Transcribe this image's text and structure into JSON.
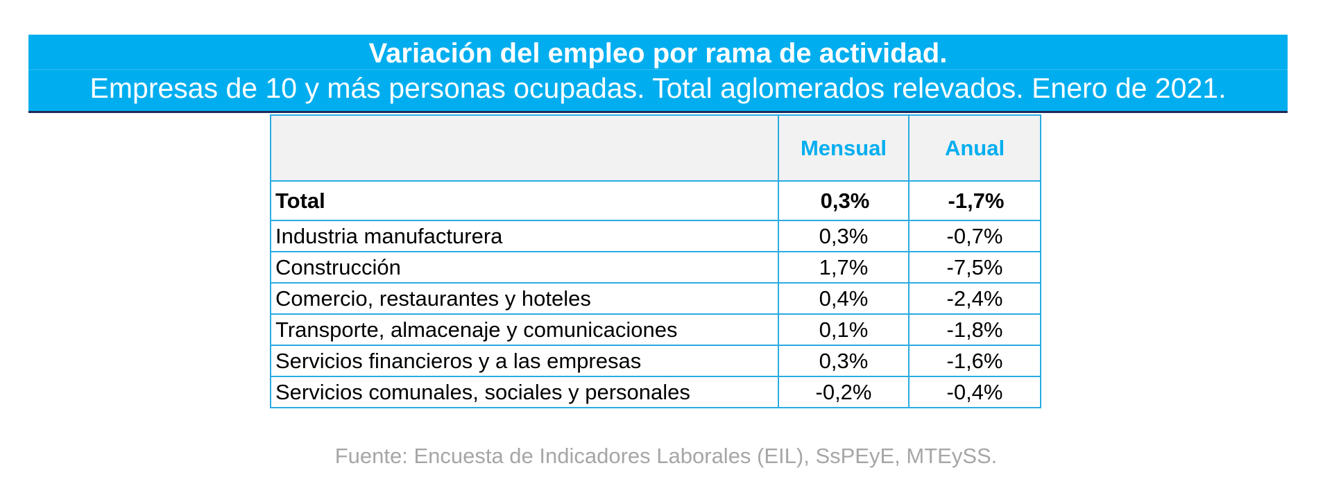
{
  "chart_data": {
    "type": "table",
    "title": "Variación del empleo por rama de actividad.",
    "subtitle": "Empresas de 10 y más personas ocupadas. Total aglomerados relevados. Enero de 2021.",
    "columns": [
      "",
      "Mensual",
      "Anual"
    ],
    "rows": [
      {
        "label": "Total",
        "mensual": "0,3%",
        "anual": "-1,7%",
        "bold": true
      },
      {
        "label": "Industria manufacturera",
        "mensual": "0,3%",
        "anual": "-0,7%"
      },
      {
        "label": "Construcción",
        "mensual": "1,7%",
        "anual": "-7,5%"
      },
      {
        "label": "Comercio, restaurantes y hoteles",
        "mensual": "0,4%",
        "anual": "-2,4%"
      },
      {
        "label": "Transporte, almacenaje y comunicaciones",
        "mensual": "0,1%",
        "anual": "-1,8%"
      },
      {
        "label": "Servicios financieros y a las empresas",
        "mensual": "0,3%",
        "anual": "-1,6%"
      },
      {
        "label": "Servicios comunales, sociales y personales",
        "mensual": "-0,2%",
        "anual": "-0,4%"
      }
    ],
    "source": "Fuente: Encuesta de Indicadores Laborales (EIL), SsPEyE, MTEySS."
  },
  "colors": {
    "banner": "#00AEEF",
    "header_text": "#00AEEF",
    "grid": "#29ABE2",
    "source_text": "#A6A6A6"
  }
}
